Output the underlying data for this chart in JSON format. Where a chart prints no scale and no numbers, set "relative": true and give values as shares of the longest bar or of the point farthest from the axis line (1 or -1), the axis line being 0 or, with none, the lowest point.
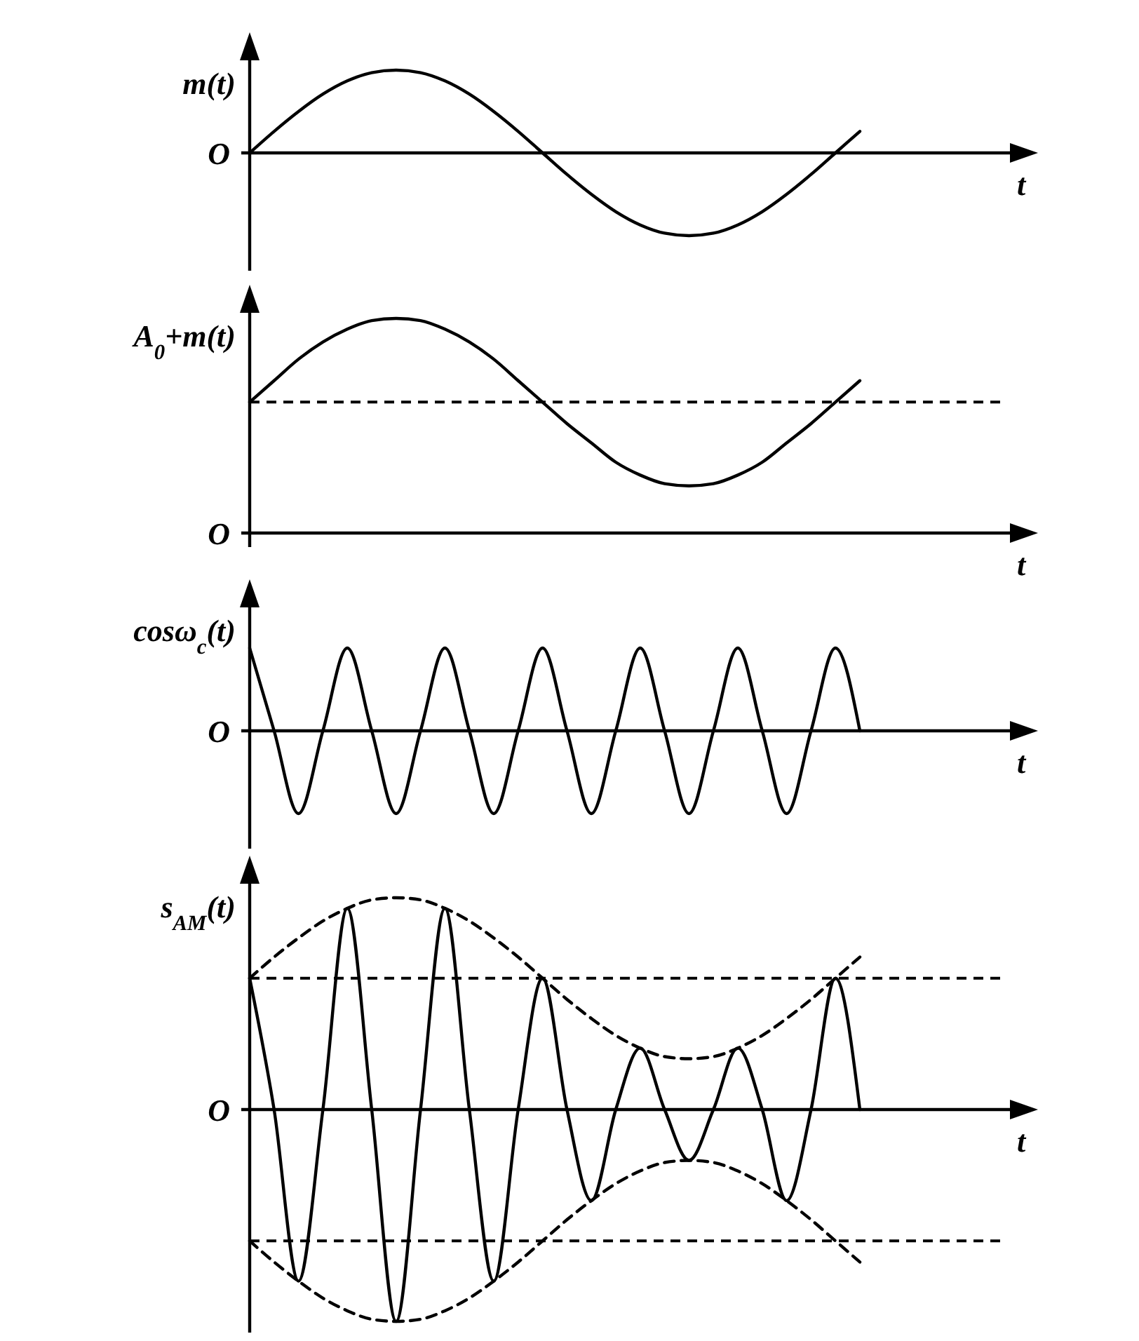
{
  "chart_data": [
    {
      "type": "line",
      "relative": true,
      "ylabel": "m(t)",
      "xlabel": "t",
      "annotations": [
        "O"
      ],
      "categories": [
        null,
        null,
        null,
        null,
        null,
        null,
        null,
        null,
        null,
        null,
        null,
        null,
        null,
        null,
        null,
        null,
        null,
        null,
        null,
        null,
        null,
        null,
        null,
        null,
        null,
        null,
        null,
        null,
        null,
        null,
        null
      ],
      "series": [
        {
          "color": "#000000",
          "values": [
            0,
            0.26,
            0.5,
            0.71,
            0.87,
            0.97,
            1,
            0.97,
            0.87,
            0.71,
            0.5,
            0.26,
            0,
            -0.26,
            -0.5,
            -0.71,
            -0.87,
            -0.97,
            -1,
            -0.97,
            -0.87,
            -0.71,
            -0.5,
            -0.26,
            0,
            0.26,
            null,
            null,
            null,
            null,
            null
          ]
        }
      ]
    },
    {
      "type": "line",
      "relative": true,
      "ylabel": "A$_{0}$+m(t)",
      "xlabel": "t",
      "annotations": [
        "O"
      ],
      "categories": [
        null,
        null,
        null,
        null,
        null,
        null,
        null,
        null,
        null,
        null,
        null,
        null,
        null,
        null,
        null,
        null,
        null,
        null,
        null,
        null,
        null,
        null,
        null,
        null,
        null,
        null,
        null,
        null,
        null,
        null,
        null
      ],
      "series": [
        {
          "color": "#000000",
          "values": [
            0.61,
            0.71,
            0.81,
            0.89,
            0.95,
            0.99,
            1,
            0.99,
            0.95,
            0.89,
            0.81,
            0.71,
            0.61,
            0.51,
            0.42,
            0.33,
            0.27,
            0.23,
            0.22,
            0.23,
            0.27,
            0.33,
            0.42,
            0.51,
            0.61,
            0.71,
            null,
            null,
            null,
            null,
            null
          ]
        }
      ],
      "ref_lines": [
        {
          "axis": "y",
          "value": 0.61,
          "line_style": "dashed",
          "color": "#000000"
        }
      ]
    },
    {
      "type": "line",
      "relative": true,
      "ylabel": "cosω$_{c}$(t)",
      "xlabel": "t",
      "annotations": [
        "O"
      ],
      "categories": [
        null,
        null,
        null,
        null,
        null,
        null,
        null,
        null,
        null,
        null,
        null,
        null,
        null,
        null,
        null,
        null,
        null,
        null,
        null,
        null,
        null,
        null,
        null,
        null,
        null,
        null,
        null,
        null,
        null,
        null,
        null
      ],
      "series": [
        {
          "color": "#000000",
          "values": [
            1,
            0,
            -1,
            0,
            1,
            0,
            -1,
            0,
            1,
            0,
            -1,
            0,
            1,
            0,
            -1,
            0,
            1,
            0,
            -1,
            0,
            1,
            0,
            -1,
            0,
            1,
            0,
            null,
            null,
            null,
            null,
            null
          ]
        }
      ]
    },
    {
      "type": "line",
      "relative": true,
      "ylabel": "s$_{AM}$(t)",
      "xlabel": "t",
      "annotations": [
        "O"
      ],
      "categories": [
        null,
        null,
        null,
        null,
        null,
        null,
        null,
        null,
        null,
        null,
        null,
        null,
        null,
        null,
        null,
        null,
        null,
        null,
        null,
        null,
        null,
        null,
        null,
        null,
        null,
        null,
        null,
        null,
        null,
        null,
        null
      ],
      "series": [
        {
          "color": "#000000",
          "values": [
            0.62,
            0,
            -0.81,
            0,
            0.95,
            0,
            -1,
            0,
            0.95,
            0,
            -0.81,
            0,
            0.62,
            0,
            -0.43,
            0,
            0.29,
            0,
            -0.24,
            0,
            0.29,
            0,
            -0.43,
            0,
            0.62,
            0,
            null,
            null,
            null,
            null,
            null
          ]
        },
        {
          "color": "#000000",
          "line_style": "dashed",
          "values": [
            0.62,
            0.72,
            0.81,
            0.89,
            0.95,
            0.99,
            1,
            0.99,
            0.95,
            0.89,
            0.81,
            0.72,
            0.62,
            0.52,
            0.43,
            0.35,
            0.29,
            0.25,
            0.24,
            0.25,
            0.29,
            0.35,
            0.43,
            0.52,
            0.62,
            0.72,
            null,
            null,
            null,
            null,
            null
          ]
        },
        {
          "color": "#000000",
          "line_style": "dashed",
          "values": [
            -0.62,
            -0.72,
            -0.81,
            -0.89,
            -0.95,
            -0.99,
            -1,
            -0.99,
            -0.95,
            -0.89,
            -0.81,
            -0.72,
            -0.62,
            -0.52,
            -0.43,
            -0.35,
            -0.29,
            -0.25,
            -0.24,
            -0.25,
            -0.29,
            -0.35,
            -0.43,
            -0.52,
            -0.62,
            -0.72,
            null,
            null,
            null,
            null,
            null
          ]
        }
      ],
      "ref_lines": [
        {
          "axis": "y",
          "value": 0.62,
          "line_style": "dashed",
          "color": "#000000"
        },
        {
          "axis": "y",
          "value": -0.62,
          "line_style": "dashed",
          "color": "#000000"
        }
      ]
    }
  ]
}
